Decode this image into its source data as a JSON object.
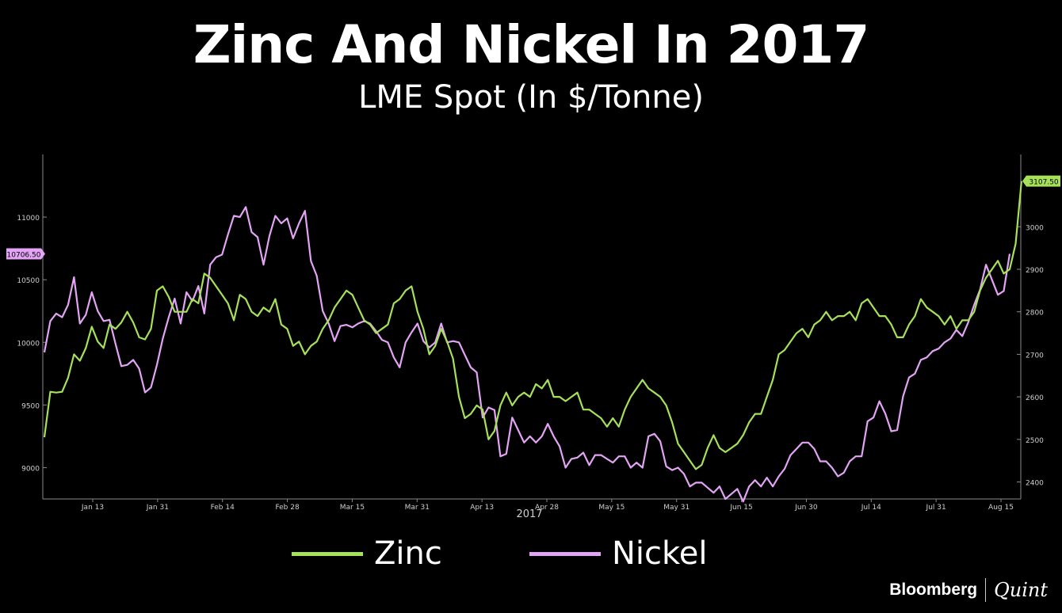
{
  "header": {
    "title": "Zinc And Nickel In 2017",
    "subtitle": "LME Spot (In $/Tonne)"
  },
  "legend": {
    "items": [
      {
        "label": "Zinc",
        "color": "#a6e15a"
      },
      {
        "label": "Nickel",
        "color": "#e3a4f5"
      }
    ]
  },
  "brand": {
    "name": "Bloomberg",
    "partner": "Quint"
  },
  "chart_data": {
    "type": "line",
    "xlabel": "2017",
    "x_tick_labels": [
      "Jan 13",
      "Jan 31",
      "Feb 14",
      "Feb 28",
      "Mar 15",
      "Mar 31",
      "Apr 13",
      "Apr 28",
      "May 15",
      "May 31",
      "Jun 15",
      "Jun 30",
      "Jul 14",
      "Jul 31",
      "Aug 15"
    ],
    "grid": false,
    "y_left": {
      "series": "Nickel",
      "ticks": [
        9000,
        9500,
        10000,
        10500,
        11000
      ],
      "range": [
        8750,
        11500
      ],
      "last_value_label": "10706.50"
    },
    "y_right": {
      "series": "Zinc",
      "ticks": [
        2400,
        2500,
        2600,
        2700,
        2800,
        2900,
        3000
      ],
      "range": [
        2360,
        3170
      ],
      "last_value_label": "3107.50"
    },
    "series": [
      {
        "name": "Nickel",
        "axis": "left",
        "color": "#e3a4f5",
        "values": [
          9920,
          10170,
          10230,
          10200,
          10300,
          10520,
          10150,
          10220,
          10400,
          10250,
          10170,
          10180,
          9990,
          9810,
          9820,
          9860,
          9790,
          9600,
          9640,
          9820,
          10030,
          10200,
          10350,
          10150,
          10400,
          10330,
          10450,
          10230,
          10620,
          10680,
          10700,
          10860,
          11010,
          11000,
          11080,
          10880,
          10840,
          10620,
          10850,
          11010,
          10950,
          10990,
          10830,
          10950,
          11050,
          10650,
          10530,
          10250,
          10150,
          10010,
          10130,
          10140,
          10120,
          10150,
          10170,
          10150,
          10090,
          10020,
          10000,
          9880,
          9800,
          10000,
          10080,
          10150,
          10010,
          9960,
          10000,
          10150,
          10000,
          10010,
          10000,
          9900,
          9800,
          9760,
          9400,
          9480,
          9460,
          9090,
          9110,
          9400,
          9300,
          9200,
          9250,
          9200,
          9250,
          9350,
          9250,
          9170,
          9000,
          9070,
          9080,
          9120,
          9020,
          9100,
          9100,
          9070,
          9040,
          9090,
          9090,
          9000,
          9040,
          9000,
          9250,
          9270,
          9210,
          9010,
          8980,
          9000,
          8950,
          8850,
          8880,
          8880,
          8840,
          8800,
          8850,
          8750,
          8790,
          8830,
          8730,
          8850,
          8900,
          8850,
          8920,
          8850,
          8930,
          8990,
          9100,
          9150,
          9200,
          9200,
          9150,
          9050,
          9050,
          9000,
          8930,
          8960,
          9050,
          9090,
          9090,
          9370,
          9400,
          9530,
          9430,
          9290,
          9300,
          9570,
          9720,
          9750,
          9860,
          9880,
          9930,
          9950,
          10000,
          10030,
          10100,
          10050,
          10160,
          10300,
          10420,
          10620,
          10500,
          10380,
          10410,
          10706.5
        ],
        "last_value": 10706.5
      },
      {
        "name": "Zinc",
        "axis": "right",
        "color": "#a6e15a",
        "values": [
          2505,
          2612,
          2610,
          2612,
          2645,
          2700,
          2685,
          2715,
          2765,
          2730,
          2715,
          2770,
          2760,
          2775,
          2800,
          2775,
          2740,
          2735,
          2760,
          2850,
          2860,
          2835,
          2800,
          2800,
          2800,
          2830,
          2820,
          2890,
          2880,
          2860,
          2840,
          2820,
          2780,
          2840,
          2830,
          2800,
          2790,
          2810,
          2800,
          2830,
          2770,
          2760,
          2720,
          2730,
          2700,
          2720,
          2730,
          2760,
          2780,
          2810,
          2830,
          2850,
          2840,
          2810,
          2780,
          2770,
          2750,
          2760,
          2770,
          2820,
          2830,
          2850,
          2860,
          2800,
          2760,
          2700,
          2720,
          2760,
          2730,
          2690,
          2600,
          2550,
          2560,
          2580,
          2570,
          2500,
          2520,
          2580,
          2610,
          2580,
          2600,
          2610,
          2600,
          2630,
          2620,
          2640,
          2600,
          2600,
          2590,
          2600,
          2610,
          2570,
          2570,
          2560,
          2550,
          2530,
          2550,
          2530,
          2570,
          2600,
          2620,
          2640,
          2620,
          2610,
          2600,
          2580,
          2540,
          2490,
          2470,
          2450,
          2430,
          2440,
          2480,
          2510,
          2480,
          2470,
          2480,
          2490,
          2510,
          2540,
          2560,
          2560,
          2600,
          2640,
          2700,
          2710,
          2730,
          2750,
          2760,
          2740,
          2770,
          2780,
          2800,
          2780,
          2790,
          2790,
          2800,
          2780,
          2820,
          2830,
          2810,
          2790,
          2790,
          2770,
          2740,
          2740,
          2770,
          2790,
          2830,
          2810,
          2800,
          2790,
          2770,
          2790,
          2760,
          2780,
          2780,
          2800,
          2850,
          2880,
          2900,
          2920,
          2890,
          2900,
          2960,
          3107.5
        ],
        "last_value": 3107.5
      }
    ]
  }
}
